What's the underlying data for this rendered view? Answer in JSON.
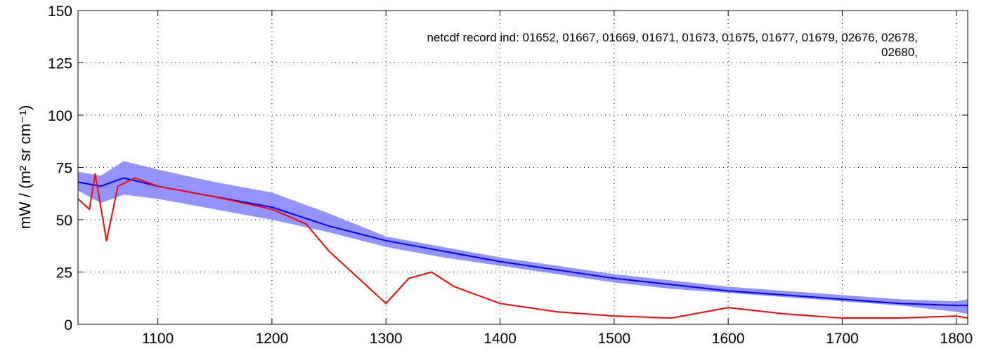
{
  "chart_data": {
    "type": "line",
    "title": "",
    "xlabel": "",
    "ylabel": "mW / (m² sr cm⁻¹)",
    "xlim": [
      1030,
      1810
    ],
    "ylim": [
      0,
      150
    ],
    "x_ticks": [
      1100,
      1200,
      1300,
      1400,
      1500,
      1600,
      1700,
      1800
    ],
    "y_ticks": [
      0,
      25,
      50,
      75,
      100,
      125,
      150
    ],
    "grid": true,
    "annotation": {
      "line1": "netcdf record ind:  01652, 01667, 01669, 01671, 01673, 01675, 01677, 01679, 02676, 02678,",
      "line2": "02680,"
    },
    "series": [
      {
        "color": "#0000ff",
        "band_color": "#8080ff",
        "x": [
          1030,
          1050,
          1070,
          1100,
          1150,
          1200,
          1250,
          1300,
          1350,
          1400,
          1450,
          1500,
          1550,
          1600,
          1650,
          1700,
          1750,
          1800,
          1810
        ],
        "y": [
          68,
          66,
          70,
          66,
          61,
          56,
          47,
          40,
          35,
          30,
          26,
          22,
          19,
          16,
          14,
          12,
          10,
          9,
          9
        ],
        "band_low": [
          64,
          58,
          62,
          60,
          55,
          50,
          44,
          37,
          32,
          28,
          24,
          20,
          17,
          15,
          13,
          11,
          9,
          6,
          5
        ],
        "band_high": [
          73,
          71,
          78,
          74,
          68,
          63,
          53,
          42,
          37,
          32,
          28,
          24,
          21,
          18,
          16,
          14,
          12,
          11,
          12
        ]
      },
      {
        "color": "#ff0000",
        "x": [
          1030,
          1040,
          1045,
          1055,
          1065,
          1080,
          1100,
          1150,
          1200,
          1230,
          1250,
          1270,
          1290,
          1300,
          1320,
          1340,
          1360,
          1400,
          1450,
          1500,
          1550,
          1600,
          1650,
          1700,
          1750,
          1800,
          1810
        ],
        "y": [
          60,
          55,
          72,
          40,
          66,
          70,
          66,
          61,
          55,
          48,
          35,
          25,
          15,
          10,
          22,
          25,
          18,
          10,
          6,
          4,
          3,
          8,
          5,
          3,
          3,
          4,
          3
        ]
      }
    ]
  }
}
